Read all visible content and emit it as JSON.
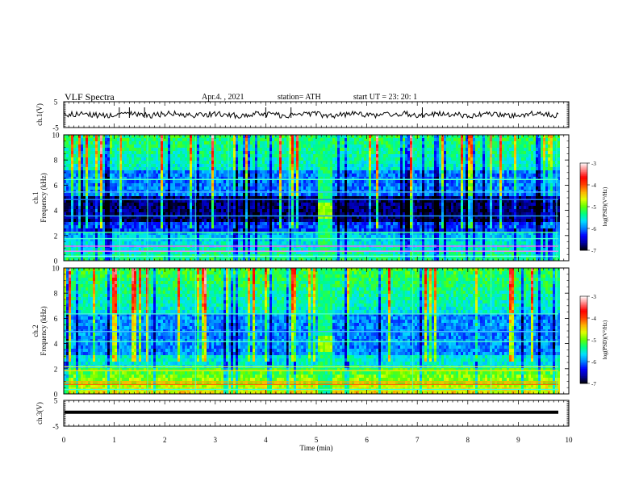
{
  "header": {
    "title": "VLF  Spectra",
    "date": "Apr.4. , 2021",
    "station": "station= ATH",
    "start_ut": "start  UT  =    23: 20: 1"
  },
  "chart_data": {
    "type": "heatmap",
    "xlabel": "Time  (min)",
    "xlim": [
      0,
      10
    ],
    "x_ticks": [
      "0",
      "1",
      "2",
      "3",
      "4",
      "5",
      "6",
      "7",
      "8",
      "9",
      "10"
    ],
    "panels": [
      {
        "id": "ch1-waveform",
        "kind": "line",
        "ylabel": "ch.1(V)",
        "ylim": [
          -5,
          5
        ],
        "y_ticks": [
          "5",
          "-5"
        ]
      },
      {
        "id": "ch1-spectrogram",
        "kind": "heatmap",
        "ylabel_top": "ch.1",
        "ylabel": "Frequency  (kHz)",
        "ylim": [
          0,
          10
        ],
        "y_ticks": [
          "0",
          "2",
          "4",
          "6",
          "8",
          "10"
        ]
      },
      {
        "id": "ch2-spectrogram",
        "kind": "heatmap",
        "ylabel_top": "ch.2",
        "ylabel": "Frequency  (kHz)",
        "ylim": [
          0,
          10
        ],
        "y_ticks": [
          "0",
          "2",
          "4",
          "6",
          "8",
          "10"
        ]
      },
      {
        "id": "ch3-waveform",
        "kind": "line",
        "ylabel": "ch.3(V)",
        "ylim": [
          -5,
          5
        ],
        "y_ticks": [
          "5",
          "-5"
        ]
      }
    ],
    "colorbar": {
      "label": "log(PSD)(V²/Hz)",
      "range": [
        -7,
        -3
      ],
      "ticks": [
        "-3",
        "-4",
        "-5",
        "-6",
        "-7"
      ],
      "colors": [
        "#000000",
        "#0000a0",
        "#0000ff",
        "#0080ff",
        "#00e0ff",
        "#00ff80",
        "#60ff00",
        "#e0ff00",
        "#ffb000",
        "#ff4000",
        "#ff0000",
        "#ff8080",
        "#ffffff"
      ]
    },
    "notable_features": {
      "broadband_burst_min": [
        5.0,
        5.3
      ],
      "burst_peak_khz": 4
    }
  }
}
